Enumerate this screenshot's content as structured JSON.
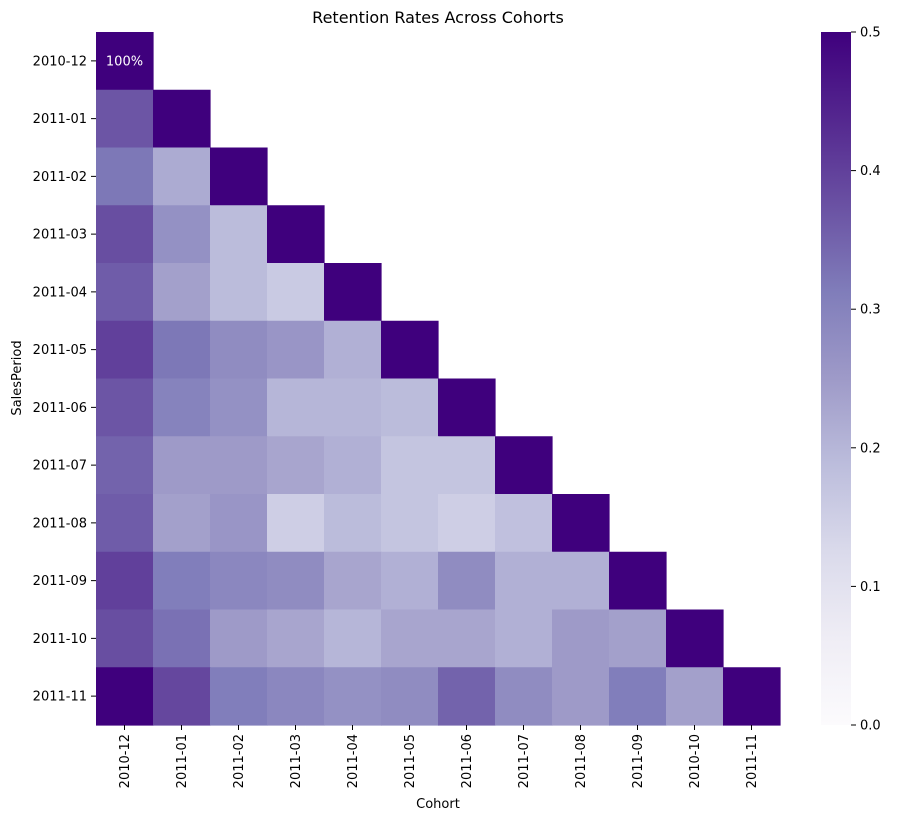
{
  "chart_data": {
    "type": "heatmap",
    "title": "Retention Rates Across Cohorts",
    "xlabel": "Cohort",
    "ylabel": "SalesPeriod",
    "x_categories": [
      "2010-12",
      "2011-01",
      "2011-02",
      "2011-03",
      "2011-04",
      "2011-05",
      "2011-06",
      "2011-07",
      "2011-08",
      "2011-09",
      "2010-10",
      "2011-11"
    ],
    "y_categories": [
      "2010-12",
      "2011-01",
      "2011-02",
      "2011-03",
      "2011-04",
      "2011-05",
      "2011-06",
      "2011-07",
      "2011-08",
      "2011-09",
      "2011-10",
      "2011-11"
    ],
    "values": [
      [
        1.0,
        null,
        null,
        null,
        null,
        null,
        null,
        null,
        null,
        null,
        null,
        null
      ],
      [
        0.37,
        1.0,
        null,
        null,
        null,
        null,
        null,
        null,
        null,
        null,
        null,
        null
      ],
      [
        0.32,
        0.22,
        1.0,
        null,
        null,
        null,
        null,
        null,
        null,
        null,
        null,
        null
      ],
      [
        0.38,
        0.27,
        0.19,
        1.0,
        null,
        null,
        null,
        null,
        null,
        null,
        null,
        null
      ],
      [
        0.36,
        0.24,
        0.19,
        0.16,
        1.0,
        null,
        null,
        null,
        null,
        null,
        null,
        null
      ],
      [
        0.4,
        0.32,
        0.28,
        0.26,
        0.21,
        1.0,
        null,
        null,
        null,
        null,
        null,
        null
      ],
      [
        0.37,
        0.3,
        0.27,
        0.2,
        0.2,
        0.19,
        1.0,
        null,
        null,
        null,
        null,
        null
      ],
      [
        0.35,
        0.25,
        0.25,
        0.23,
        0.21,
        0.17,
        0.17,
        1.0,
        null,
        null,
        null,
        null
      ],
      [
        0.36,
        0.24,
        0.26,
        0.15,
        0.19,
        0.17,
        0.15,
        0.18,
        1.0,
        null,
        null,
        null
      ],
      [
        0.4,
        0.31,
        0.29,
        0.28,
        0.23,
        0.21,
        0.28,
        0.21,
        0.21,
        1.0,
        null,
        null
      ],
      [
        0.38,
        0.33,
        0.25,
        0.23,
        0.2,
        0.23,
        0.23,
        0.21,
        0.25,
        0.24,
        1.0,
        null
      ],
      [
        0.5,
        0.39,
        0.31,
        0.29,
        0.27,
        0.28,
        0.35,
        0.28,
        0.25,
        0.31,
        0.24,
        1.0
      ]
    ],
    "annotations": [
      {
        "row": 0,
        "col": 0,
        "text": "100%"
      }
    ],
    "colorbar": {
      "min": 0.0,
      "max": 0.5,
      "ticks": [
        "0.0",
        "0.1",
        "0.2",
        "0.3",
        "0.4",
        "0.5"
      ],
      "colormap": "Purples"
    },
    "grid": false
  }
}
